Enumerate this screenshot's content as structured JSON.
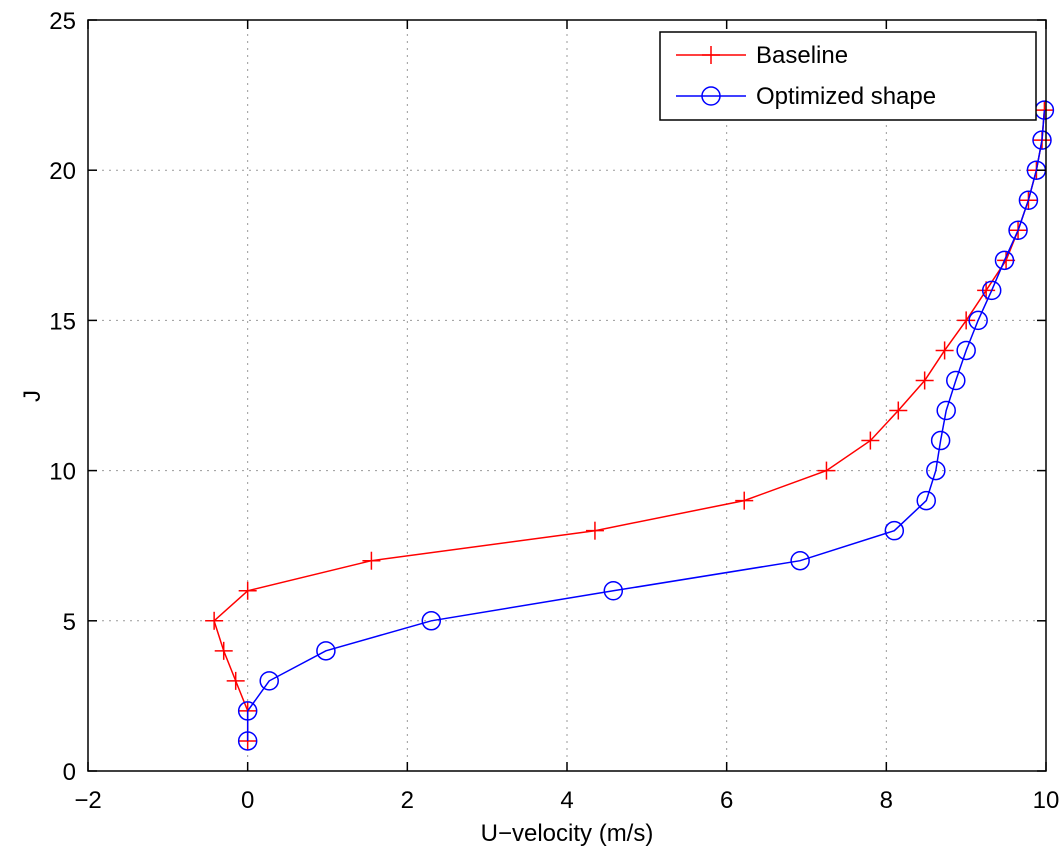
{
  "chart_data": {
    "type": "line",
    "xlabel": "U−velocity (m/s)",
    "ylabel": "J",
    "xlim": [
      -2,
      10
    ],
    "ylim": [
      0,
      25
    ],
    "xticks": [
      -2,
      0,
      2,
      4,
      6,
      8,
      10
    ],
    "yticks": [
      0,
      5,
      10,
      15,
      20,
      25
    ],
    "xtick_labels": [
      "−2",
      "0",
      "2",
      "4",
      "6",
      "8",
      "10"
    ],
    "ytick_labels": [
      "0",
      "5",
      "10",
      "15",
      "20",
      "25"
    ],
    "grid": true,
    "legend": "top-right",
    "series": [
      {
        "name": "Baseline",
        "color": "#ff0000",
        "marker": "plus",
        "points": [
          [
            0.0,
            1
          ],
          [
            0.0,
            2
          ],
          [
            -0.15,
            3
          ],
          [
            -0.3,
            4
          ],
          [
            -0.42,
            5
          ],
          [
            0.0,
            6
          ],
          [
            1.55,
            7
          ],
          [
            4.35,
            8
          ],
          [
            6.22,
            9
          ],
          [
            7.25,
            10
          ],
          [
            7.8,
            11
          ],
          [
            8.15,
            12
          ],
          [
            8.48,
            13
          ],
          [
            8.73,
            14
          ],
          [
            9.0,
            15
          ],
          [
            9.25,
            16
          ],
          [
            9.5,
            17
          ],
          [
            9.65,
            18
          ],
          [
            9.78,
            19
          ],
          [
            9.88,
            20
          ],
          [
            9.95,
            21
          ],
          [
            9.98,
            22
          ]
        ]
      },
      {
        "name": "Optimized shape",
        "color": "#0000ff",
        "marker": "circle",
        "points": [
          [
            0.0,
            1
          ],
          [
            0.0,
            2
          ],
          [
            0.27,
            3
          ],
          [
            0.98,
            4
          ],
          [
            2.3,
            5
          ],
          [
            4.58,
            6
          ],
          [
            6.92,
            7
          ],
          [
            8.1,
            8
          ],
          [
            8.5,
            9
          ],
          [
            8.62,
            10
          ],
          [
            8.68,
            11
          ],
          [
            8.75,
            12
          ],
          [
            8.87,
            13
          ],
          [
            9.0,
            14
          ],
          [
            9.15,
            15
          ],
          [
            9.32,
            16
          ],
          [
            9.48,
            17
          ],
          [
            9.65,
            18
          ],
          [
            9.78,
            19
          ],
          [
            9.88,
            20
          ],
          [
            9.95,
            21
          ],
          [
            9.98,
            22
          ]
        ]
      }
    ]
  }
}
